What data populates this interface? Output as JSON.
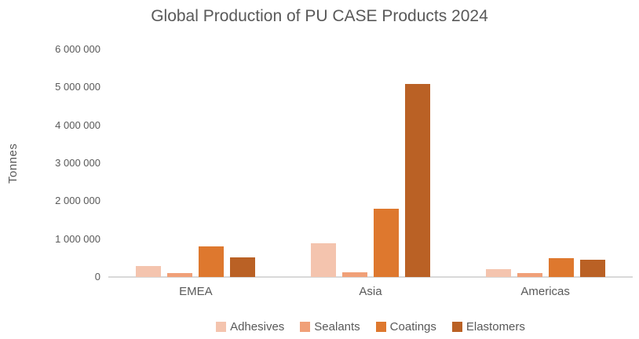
{
  "chart_data": {
    "type": "bar",
    "title": "Global Production of PU CASE Products 2024",
    "ylabel": "Tonnes",
    "xlabel": "",
    "categories": [
      "EMEA",
      "Asia",
      "Americas"
    ],
    "series": [
      {
        "name": "Adhesives",
        "color": "#F4C4AE",
        "values": [
          300000,
          900000,
          210000
        ]
      },
      {
        "name": "Sealants",
        "color": "#F0A078",
        "values": [
          110000,
          120000,
          110000
        ]
      },
      {
        "name": "Coatings",
        "color": "#DE782E",
        "values": [
          810000,
          1810000,
          500000
        ]
      },
      {
        "name": "Elastomers",
        "color": "#BA6125",
        "values": [
          520000,
          5100000,
          460000
        ]
      }
    ],
    "ylim": [
      0,
      6000000
    ],
    "ytick_interval": 1000000,
    "ytick_labels": [
      "0",
      "1 000 000",
      "2 000 000",
      "3 000 000",
      "4 000 000",
      "5 000 000",
      "6 000 000"
    ],
    "grid": false,
    "legend_position": "bottom"
  },
  "colors": {
    "text": "#595959",
    "axis_line": "#D9D9D9",
    "background": "#FFFFFF"
  }
}
